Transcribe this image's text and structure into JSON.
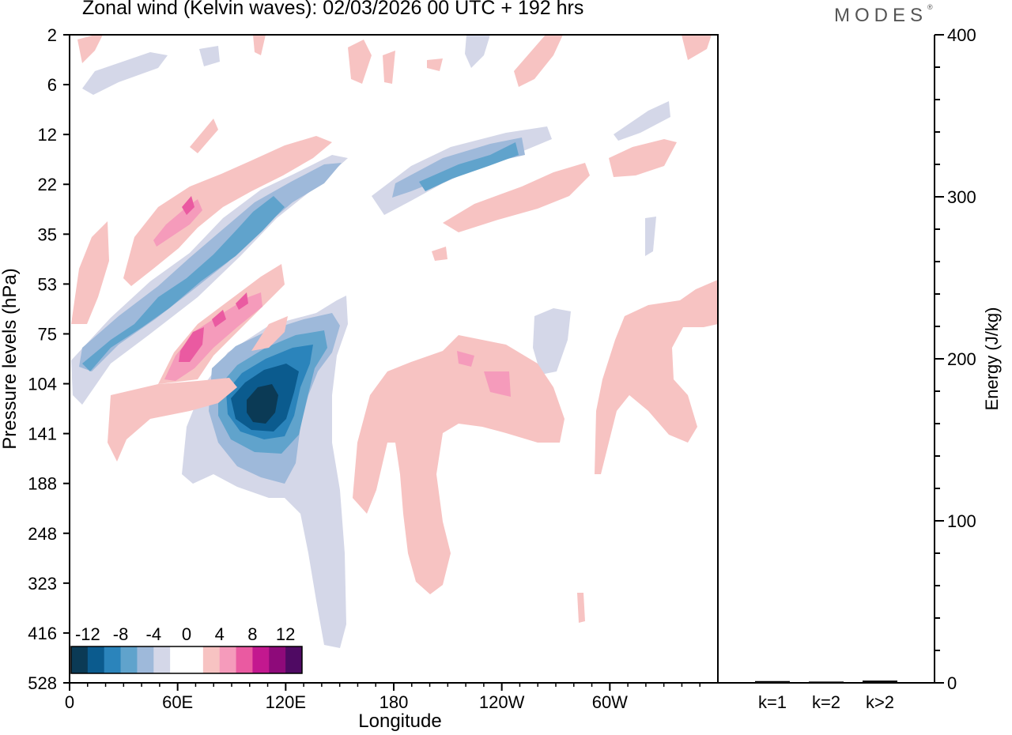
{
  "title": "Zonal wind (Kelvin waves):  02/03/2026  00 UTC  + 192 hrs",
  "logo": {
    "text": "MODES",
    "mark": "®"
  },
  "chart_data": [
    {
      "type": "heatmap",
      "title": "Zonal wind (Kelvin waves):  02/03/2026  00 UTC  + 192 hrs",
      "xlabel": "Longitude",
      "ylabel": "Pressure levels (hPa)",
      "xlim": [
        0,
        360
      ],
      "x_ticks": [
        {
          "lon": 0,
          "label": "0"
        },
        {
          "lon": 60,
          "label": "60E"
        },
        {
          "lon": 120,
          "label": "120E"
        },
        {
          "lon": 180,
          "label": "180"
        },
        {
          "lon": 240,
          "label": "120W"
        },
        {
          "lon": 300,
          "label": "60W"
        }
      ],
      "y_levels": [
        "2",
        "6",
        "12",
        "22",
        "35",
        "53",
        "75",
        "104",
        "141",
        "188",
        "248",
        "323",
        "416",
        "528"
      ],
      "colorbar": {
        "labels": [
          "-12",
          "-8",
          "-4",
          "0",
          "4",
          "8",
          "12"
        ],
        "colors": [
          "#0b3a55",
          "#0b5b8e",
          "#2b84bb",
          "#60a3cc",
          "#9eb9da",
          "#d4d7e8",
          "#ffffff",
          "#ffffff",
          "#f7c3c2",
          "#f59bbb",
          "#ea5aa1",
          "#c3188f",
          "#8e0a7a",
          "#4f0a63"
        ]
      },
      "anomaly_colors": {
        "neg1": "#d4d7e8",
        "neg2": "#9eb9da",
        "neg3": "#60a3cc",
        "neg4": "#2b84bb",
        "neg5": "#0b5b8e",
        "neg6": "#0b3a55",
        "pos1": "#f7c3c2",
        "pos2": "#f59bbb",
        "pos3": "#ea5aa1"
      }
    },
    {
      "type": "bar",
      "categories": [
        "k=1",
        "k=2",
        "k>2"
      ],
      "values": [
        0.6,
        0.3,
        0.9
      ],
      "ylabel": "Energy (J/kg)",
      "ylim": [
        0,
        400
      ],
      "y_ticks": [
        0,
        100,
        200,
        300,
        400
      ]
    }
  ]
}
